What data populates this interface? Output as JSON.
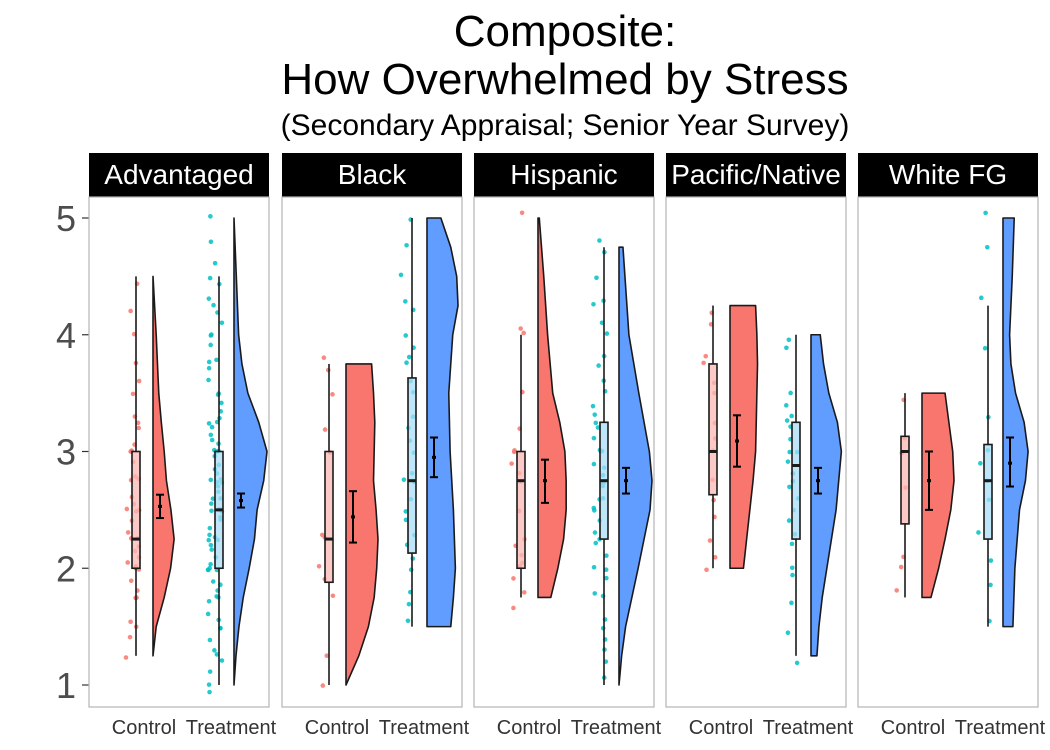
{
  "chart_data": {
    "type": "raincloud",
    "title": "Composite:",
    "title_line2": "How Overwhelmed by Stress",
    "subtitle": "(Secondary Appraisal; Senior Year Survey)",
    "ylim": [
      1,
      5
    ],
    "yticks": [
      1,
      2,
      3,
      4,
      5
    ],
    "categories": [
      "Control",
      "Treatment"
    ],
    "colors": {
      "Control": "#f8766d",
      "Treatment": "#00bfc4",
      "Treatment_violin": "#619cff",
      "strip_bg": "#000000",
      "panel_border": "#b3b3b3"
    },
    "panels": [
      {
        "name": "Advantaged",
        "groups": {
          "Control": {
            "box": {
              "min": 1.25,
              "q1": 2.0,
              "median": 2.25,
              "q3": 3.0,
              "max": 4.5
            },
            "mean": 2.53,
            "ci": [
              2.43,
              2.63
            ],
            "density": [
              [
                1.25,
                0.0
              ],
              [
                1.5,
                0.1
              ],
              [
                1.75,
                0.35
              ],
              [
                2.0,
                0.55
              ],
              [
                2.25,
                0.66
              ],
              [
                2.5,
                0.56
              ],
              [
                2.75,
                0.42
              ],
              [
                3.0,
                0.35
              ],
              [
                3.25,
                0.26
              ],
              [
                3.5,
                0.18
              ],
              [
                4.0,
                0.1
              ],
              [
                4.5,
                0.0
              ]
            ],
            "points": [
              1.25,
              1.4,
              1.5,
              1.55,
              1.75,
              1.75,
              1.8,
              1.9,
              2.0,
              2.0,
              2.0,
              2.05,
              2.1,
              2.15,
              2.2,
              2.25,
              2.25,
              2.3,
              2.4,
              2.5,
              2.5,
              2.5,
              2.55,
              2.6,
              2.75,
              2.75,
              2.8,
              2.9,
              3.0,
              3.0,
              3.0,
              3.05,
              3.2,
              3.25,
              3.3,
              3.5,
              3.6,
              3.75,
              4.0,
              4.2,
              4.45
            ]
          },
          "Treatment": {
            "box": {
              "min": 1.0,
              "q1": 2.0,
              "median": 2.5,
              "q3": 3.0,
              "max": 4.5
            },
            "mean": 2.58,
            "ci": [
              2.52,
              2.64
            ],
            "density": [
              [
                1.0,
                0.0
              ],
              [
                1.25,
                0.06
              ],
              [
                1.5,
                0.15
              ],
              [
                1.75,
                0.28
              ],
              [
                2.0,
                0.46
              ],
              [
                2.25,
                0.62
              ],
              [
                2.5,
                0.7
              ],
              [
                2.75,
                0.9
              ],
              [
                3.0,
                1.0
              ],
              [
                3.25,
                0.75
              ],
              [
                3.5,
                0.42
              ],
              [
                3.75,
                0.24
              ],
              [
                4.0,
                0.14
              ],
              [
                4.5,
                0.07
              ],
              [
                5.0,
                0.0
              ]
            ],
            "points": [
              0.95,
              1.0,
              1.1,
              1.2,
              1.25,
              1.3,
              1.4,
              1.5,
              1.5,
              1.55,
              1.6,
              1.7,
              1.75,
              1.75,
              1.8,
              1.85,
              1.9,
              2.0,
              2.0,
              2.0,
              2.0,
              2.05,
              2.1,
              2.15,
              2.2,
              2.25,
              2.25,
              2.25,
              2.3,
              2.35,
              2.4,
              2.45,
              2.5,
              2.5,
              2.5,
              2.5,
              2.55,
              2.6,
              2.6,
              2.65,
              2.7,
              2.75,
              2.75,
              2.75,
              2.75,
              2.8,
              2.85,
              2.9,
              2.95,
              3.0,
              3.0,
              3.0,
              3.0,
              3.05,
              3.1,
              3.15,
              3.2,
              3.25,
              3.25,
              3.3,
              3.35,
              3.4,
              3.5,
              3.5,
              3.6,
              3.7,
              3.75,
              3.8,
              3.9,
              4.0,
              4.0,
              4.1,
              4.2,
              4.25,
              4.3,
              4.45,
              4.5,
              4.6,
              4.8,
              5.0
            ]
          }
        }
      },
      {
        "name": "Black",
        "groups": {
          "Control": {
            "box": {
              "min": 1.0,
              "q1": 1.88,
              "median": 2.25,
              "q3": 3.0,
              "max": 3.75
            },
            "mean": 2.44,
            "ci": [
              2.22,
              2.66
            ],
            "density": [
              [
                1.0,
                0.0
              ],
              [
                1.25,
                0.4
              ],
              [
                1.5,
                0.7
              ],
              [
                1.75,
                0.88
              ],
              [
                2.0,
                0.96
              ],
              [
                2.25,
                1.0
              ],
              [
                2.5,
                0.94
              ],
              [
                2.75,
                0.86
              ],
              [
                3.0,
                0.88
              ],
              [
                3.25,
                0.9
              ],
              [
                3.5,
                0.86
              ],
              [
                3.75,
                0.8
              ]
            ],
            "points": [
              1.0,
              1.25,
              1.75,
              1.9,
              2.0,
              2.25,
              2.3,
              3.0,
              3.2,
              3.5,
              3.7,
              3.8
            ]
          },
          "Treatment": {
            "box": {
              "min": 1.5,
              "q1": 2.13,
              "median": 2.75,
              "q3": 3.63,
              "max": 5.0
            },
            "mean": 2.95,
            "ci": [
              2.78,
              3.12
            ],
            "density": [
              [
                1.5,
                0.72
              ],
              [
                1.75,
                0.8
              ],
              [
                2.0,
                0.86
              ],
              [
                2.5,
                0.8
              ],
              [
                3.0,
                0.7
              ],
              [
                3.5,
                0.66
              ],
              [
                4.0,
                0.78
              ],
              [
                4.25,
                0.94
              ],
              [
                4.5,
                0.9
              ],
              [
                4.75,
                0.72
              ],
              [
                5.0,
                0.42
              ]
            ],
            "points": [
              1.55,
              1.7,
              1.8,
              2.0,
              2.1,
              2.2,
              2.3,
              2.4,
              2.5,
              2.6,
              2.75,
              2.75,
              2.8,
              3.0,
              3.1,
              3.2,
              3.3,
              3.5,
              3.6,
              3.75,
              3.8,
              3.9,
              4.0,
              4.2,
              4.3,
              4.5,
              4.75,
              5.0
            ]
          }
        }
      },
      {
        "name": "Hispanic",
        "groups": {
          "Control": {
            "box": {
              "min": 1.75,
              "q1": 2.0,
              "median": 2.75,
              "q3": 3.0,
              "max": 4.0
            },
            "mean": 2.75,
            "ci": [
              2.56,
              2.93
            ],
            "density": [
              [
                1.75,
                0.4
              ],
              [
                2.0,
                0.62
              ],
              [
                2.25,
                0.8
              ],
              [
                2.5,
                0.88
              ],
              [
                2.75,
                0.88
              ],
              [
                3.0,
                0.84
              ],
              [
                3.25,
                0.68
              ],
              [
                3.5,
                0.46
              ],
              [
                4.0,
                0.3
              ],
              [
                4.5,
                0.18
              ],
              [
                5.0,
                0.04
              ]
            ],
            "points": [
              1.65,
              1.8,
              1.9,
              2.0,
              2.05,
              2.1,
              2.2,
              2.25,
              2.5,
              2.75,
              2.8,
              2.9,
              3.0,
              3.0,
              3.2,
              3.5,
              4.0,
              4.05,
              5.05
            ]
          },
          "Treatment": {
            "box": {
              "min": 1.0,
              "q1": 2.25,
              "median": 2.75,
              "q3": 3.25,
              "max": 4.75
            },
            "mean": 2.75,
            "ci": [
              2.64,
              2.86
            ],
            "density": [
              [
                1.0,
                0.0
              ],
              [
                1.25,
                0.08
              ],
              [
                1.5,
                0.2
              ],
              [
                2.0,
                0.58
              ],
              [
                2.5,
                0.94
              ],
              [
                2.75,
                1.0
              ],
              [
                3.0,
                0.92
              ],
              [
                3.5,
                0.6
              ],
              [
                4.0,
                0.3
              ],
              [
                4.5,
                0.18
              ],
              [
                4.75,
                0.12
              ]
            ],
            "points": [
              1.05,
              1.2,
              1.3,
              1.4,
              1.5,
              1.55,
              1.75,
              1.8,
              1.9,
              2.0,
              2.0,
              2.1,
              2.2,
              2.25,
              2.3,
              2.4,
              2.5,
              2.5,
              2.6,
              2.6,
              2.7,
              2.75,
              2.75,
              2.8,
              2.85,
              2.9,
              3.0,
              3.0,
              3.0,
              3.1,
              3.2,
              3.25,
              3.3,
              3.4,
              3.5,
              3.6,
              3.75,
              3.8,
              4.0,
              4.1,
              4.25,
              4.3,
              4.5,
              4.7,
              4.8
            ]
          }
        }
      },
      {
        "name": "Pacific/Native",
        "groups": {
          "Control": {
            "box": {
              "min": 2.0,
              "q1": 2.63,
              "median": 3.0,
              "q3": 3.75,
              "max": 4.25
            },
            "mean": 3.09,
            "ci": [
              2.87,
              3.31
            ],
            "density": [
              [
                2.0,
                0.42
              ],
              [
                2.25,
                0.52
              ],
              [
                2.5,
                0.62
              ],
              [
                2.75,
                0.72
              ],
              [
                3.0,
                0.8
              ],
              [
                3.25,
                0.82
              ],
              [
                3.5,
                0.84
              ],
              [
                3.75,
                0.86
              ],
              [
                4.0,
                0.84
              ],
              [
                4.25,
                0.8
              ]
            ],
            "points": [
              2.0,
              2.1,
              2.25,
              2.45,
              2.6,
              2.75,
              3.0,
              3.1,
              3.25,
              3.5,
              3.6,
              3.75,
              3.8,
              4.1,
              4.2
            ]
          },
          "Treatment": {
            "box": {
              "min": 1.25,
              "q1": 2.25,
              "median": 2.88,
              "q3": 3.25,
              "max": 4.0
            },
            "mean": 2.75,
            "ci": [
              2.64,
              2.86
            ],
            "density": [
              [
                1.25,
                0.18
              ],
              [
                1.5,
                0.24
              ],
              [
                1.75,
                0.34
              ],
              [
                2.0,
                0.48
              ],
              [
                2.5,
                0.76
              ],
              [
                3.0,
                0.92
              ],
              [
                3.25,
                0.8
              ],
              [
                3.5,
                0.54
              ],
              [
                3.75,
                0.38
              ],
              [
                4.0,
                0.28
              ]
            ],
            "points": [
              1.2,
              1.45,
              1.7,
              1.95,
              2.0,
              2.2,
              2.3,
              2.4,
              2.5,
              2.6,
              2.7,
              2.75,
              2.8,
              2.9,
              3.0,
              3.0,
              3.1,
              3.2,
              3.25,
              3.3,
              3.4,
              3.5,
              3.9,
              3.95
            ]
          }
        }
      },
      {
        "name": "White FG",
        "groups": {
          "Control": {
            "box": {
              "min": 1.75,
              "q1": 2.38,
              "median": 3.0,
              "q3": 3.13,
              "max": 3.5
            },
            "mean": 2.75,
            "ci": [
              2.5,
              3.0
            ],
            "density": [
              [
                1.75,
                0.28
              ],
              [
                2.0,
                0.52
              ],
              [
                2.25,
                0.72
              ],
              [
                2.5,
                0.9
              ],
              [
                2.75,
                1.0
              ],
              [
                3.0,
                0.96
              ],
              [
                3.25,
                0.84
              ],
              [
                3.5,
                0.72
              ]
            ],
            "points": [
              1.8,
              2.0,
              2.1,
              2.7,
              3.0,
              3.1,
              3.45
            ]
          },
          "Treatment": {
            "box": {
              "min": 1.5,
              "q1": 2.25,
              "median": 2.75,
              "q3": 3.06,
              "max": 4.25
            },
            "mean": 2.9,
            "ci": [
              2.7,
              3.12
            ],
            "density": [
              [
                1.5,
                0.3
              ],
              [
                2.0,
                0.36
              ],
              [
                2.5,
                0.5
              ],
              [
                2.75,
                0.68
              ],
              [
                3.0,
                0.76
              ],
              [
                3.25,
                0.64
              ],
              [
                3.5,
                0.38
              ],
              [
                3.75,
                0.24
              ],
              [
                4.0,
                0.2
              ],
              [
                4.5,
                0.28
              ],
              [
                5.0,
                0.34
              ]
            ],
            "points": [
              1.55,
              1.85,
              2.05,
              2.3,
              2.6,
              2.75,
              2.9,
              3.0,
              3.3,
              3.9,
              4.3,
              4.75,
              5.05
            ]
          }
        }
      }
    ]
  }
}
